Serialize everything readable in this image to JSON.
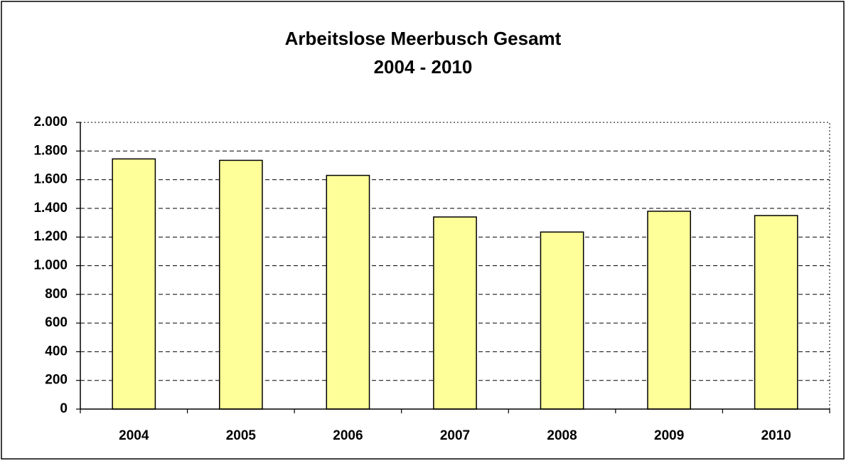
{
  "chart_data": {
    "type": "bar",
    "title": "Arbeitslose Meerbusch Gesamt",
    "subtitle": "2004 - 2010",
    "categories": [
      "2004",
      "2005",
      "2006",
      "2007",
      "2008",
      "2009",
      "2010"
    ],
    "values": [
      1745,
      1735,
      1630,
      1340,
      1235,
      1380,
      1350
    ],
    "color": "#ffff99",
    "ylim": [
      0,
      2000
    ],
    "yticks": [
      0,
      200,
      400,
      600,
      800,
      {
        "value": 1000,
        "label": "1.000"
      },
      {
        "value": 1200,
        "label": "1.200"
      },
      {
        "value": 1400,
        "label": "1.400"
      },
      {
        "value": 1600,
        "label": "1.600"
      },
      {
        "value": 1800,
        "label": "1.800"
      },
      {
        "value": 2000,
        "label": "2.000"
      }
    ],
    "grid": true
  }
}
